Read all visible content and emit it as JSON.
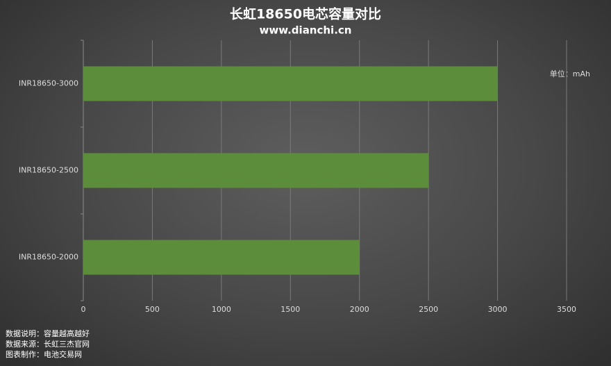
{
  "chart_data": {
    "type": "bar",
    "orientation": "horizontal",
    "title": "长虹18650电芯容量对比",
    "subtitle": "www.dianchi.cn",
    "unit_label": "单位：mAh",
    "categories": [
      "INR18650-3000",
      "INR18650-2500",
      "INR18650-2000"
    ],
    "values": [
      3000,
      2500,
      2000
    ],
    "color": "#5b8d3a",
    "xlim": [
      0,
      3500
    ],
    "xticks": [
      0,
      500,
      1000,
      1500,
      2000,
      2500,
      3000,
      3500
    ],
    "grid": true,
    "notes": [
      "数据说明：容量越高越好",
      "数据来源：长虹三杰官网",
      "图表制作：电池交易网"
    ]
  }
}
